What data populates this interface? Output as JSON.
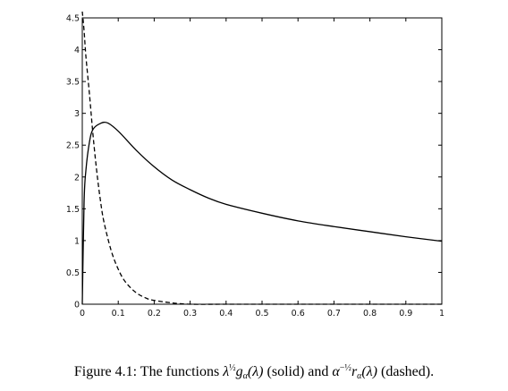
{
  "chart_data": {
    "type": "line",
    "title": "",
    "xlabel": "",
    "ylabel": "",
    "xlim": [
      0,
      1
    ],
    "ylim": [
      0,
      4.5
    ],
    "grid": false,
    "legend": "none",
    "x_ticks": [
      "0",
      "0.1",
      "0.2",
      "0.3",
      "0.4",
      "0.5",
      "0.6",
      "0.7",
      "0.8",
      "0.9",
      "1"
    ],
    "y_ticks": [
      "0",
      "0.5",
      "1",
      "1.5",
      "2",
      "2.5",
      "3",
      "3.5",
      "4",
      "4.5"
    ],
    "series": [
      {
        "style": "solid",
        "color": "#000000",
        "points": [
          [
            0,
            0
          ],
          [
            0.005,
            1.6
          ],
          [
            0.01,
            2.1
          ],
          [
            0.02,
            2.55
          ],
          [
            0.03,
            2.75
          ],
          [
            0.05,
            2.84
          ],
          [
            0.07,
            2.85
          ],
          [
            0.1,
            2.72
          ],
          [
            0.15,
            2.42
          ],
          [
            0.2,
            2.16
          ],
          [
            0.25,
            1.95
          ],
          [
            0.3,
            1.8
          ],
          [
            0.35,
            1.67
          ],
          [
            0.4,
            1.57
          ],
          [
            0.5,
            1.43
          ],
          [
            0.6,
            1.31
          ],
          [
            0.7,
            1.22
          ],
          [
            0.8,
            1.14
          ],
          [
            0.9,
            1.06
          ],
          [
            1.0,
            0.99
          ]
        ]
      },
      {
        "style": "dashed",
        "color": "#000000",
        "points": [
          [
            0,
            4.6
          ],
          [
            0.005,
            4.3
          ],
          [
            0.01,
            3.9
          ],
          [
            0.02,
            3.3
          ],
          [
            0.03,
            2.65
          ],
          [
            0.04,
            2.1
          ],
          [
            0.05,
            1.65
          ],
          [
            0.06,
            1.3
          ],
          [
            0.08,
            0.85
          ],
          [
            0.1,
            0.55
          ],
          [
            0.12,
            0.35
          ],
          [
            0.15,
            0.18
          ],
          [
            0.18,
            0.09
          ],
          [
            0.2,
            0.06
          ],
          [
            0.25,
            0.02
          ],
          [
            0.3,
            0.0
          ],
          [
            0.4,
            0.0
          ],
          [
            0.5,
            0.0
          ],
          [
            0.6,
            0.0
          ],
          [
            0.7,
            0.0
          ],
          [
            0.8,
            0.0
          ],
          [
            0.9,
            0.0
          ],
          [
            1.0,
            0.0
          ]
        ]
      }
    ]
  },
  "caption": {
    "prefix": "Figure 4.1: The functions ",
    "solid_main": "λ",
    "solid_sup": "½",
    "solid_func": "g",
    "solid_sub": "α",
    "solid_arg": "(λ)",
    "solid_note": " (solid) and ",
    "dashed_main": "α",
    "dashed_sup": "−½",
    "dashed_func": "r",
    "dashed_sub": "α",
    "dashed_arg": "(λ)",
    "dashed_note": " (dashed)."
  }
}
